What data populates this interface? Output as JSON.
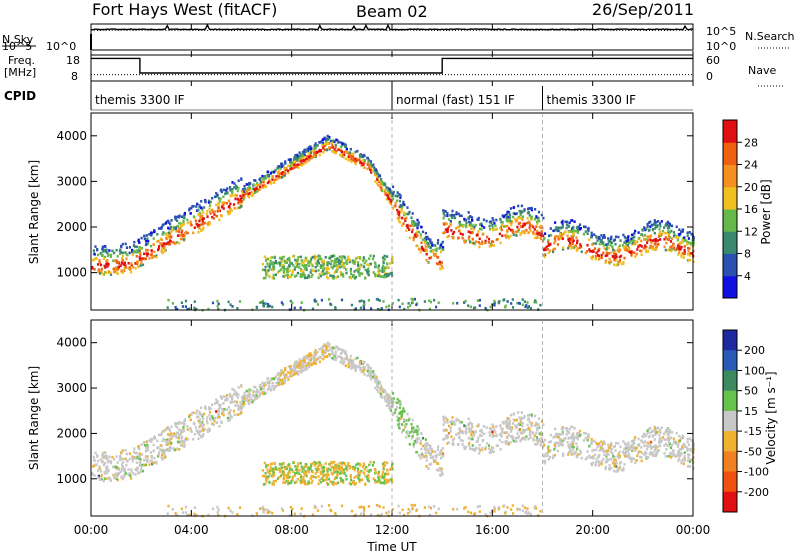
{
  "header": {
    "title": "Fort Hays West (fitACF)",
    "beam": "Beam 02",
    "date": "26/Sep/2011"
  },
  "side_labels": {
    "nsky": "N.Sky",
    "nsearch": "N.Search",
    "freq": "Freq.",
    "freq_unit": "[MHz]",
    "nave": "Nave",
    "cpid": "CPID"
  },
  "chart_data": [
    {
      "type": "line",
      "title": "N.Sky / N.Search",
      "y_left_ticks": [
        "10^5",
        "10^0"
      ],
      "y_right_ticks": [
        "10^5",
        "10^0"
      ],
      "x": [
        "00:00",
        "04:00",
        "08:00",
        "12:00",
        "16:00",
        "20:00",
        "00:00"
      ],
      "series": [
        {
          "name": "N.Sky",
          "level_log10": 4.3
        },
        {
          "name": "N.Search",
          "level_log10": 4.1
        }
      ]
    },
    {
      "type": "line",
      "y_left_ticks": [
        "18",
        "8"
      ],
      "y_right_ticks": [
        "60",
        "0"
      ],
      "series": [
        {
          "name": "Freq. [MHz]",
          "steps": [
            {
              "t": 0,
              "v": 17.8
            },
            {
              "t": 1.95,
              "v": 10.5
            },
            {
              "t": 14.0,
              "v": 17.8
            },
            {
              "t": 24,
              "v": 17.8
            }
          ]
        },
        {
          "name": "Nave",
          "steps": [
            {
              "t": 0,
              "v": 10
            },
            {
              "t": 24,
              "v": 10
            }
          ]
        }
      ]
    },
    {
      "type": "table",
      "title": "CPID",
      "segments": [
        {
          "label": "themis 3300 IF",
          "start": 0
        },
        {
          "label": "normal (fast) 151 IF",
          "start": 12
        },
        {
          "label": "themis 3300 IF",
          "start": 18
        }
      ]
    },
    {
      "type": "heatmap",
      "ylabel": "Slant Range [km]",
      "yticks": [
        1000,
        2000,
        3000,
        4000
      ],
      "ylim": [
        180,
        4500
      ],
      "colorbar_label": "Power [dB]",
      "colorbar_ticks": [
        4,
        8,
        12,
        16,
        20,
        24,
        28
      ],
      "colorbar_range": [
        0,
        32
      ]
    },
    {
      "type": "heatmap",
      "ylabel": "Slant Range [km]",
      "yticks": [
        1000,
        2000,
        3000,
        4000
      ],
      "ylim": [
        180,
        4500
      ],
      "xlabel": "Time UT",
      "xticks": [
        "00:00",
        "04:00",
        "08:00",
        "12:00",
        "16:00",
        "20:00",
        "00:00"
      ],
      "colorbar_label": "Velocity [m s⁻¹]",
      "colorbar_ticks": [
        200,
        100,
        50,
        15,
        -15,
        -50,
        -100,
        -200
      ]
    }
  ],
  "colors": {
    "power": [
      "#1010e0",
      "#2a50b0",
      "#3a8870",
      "#66b84a",
      "#f0c020",
      "#f59020",
      "#f06010",
      "#e01010"
    ],
    "velocity": [
      "#1f2aa0",
      "#2a5ab8",
      "#3d8a60",
      "#66c24a",
      "#c8c8c8",
      "#f0b030",
      "#f08020",
      "#f05010",
      "#e01010"
    ]
  }
}
